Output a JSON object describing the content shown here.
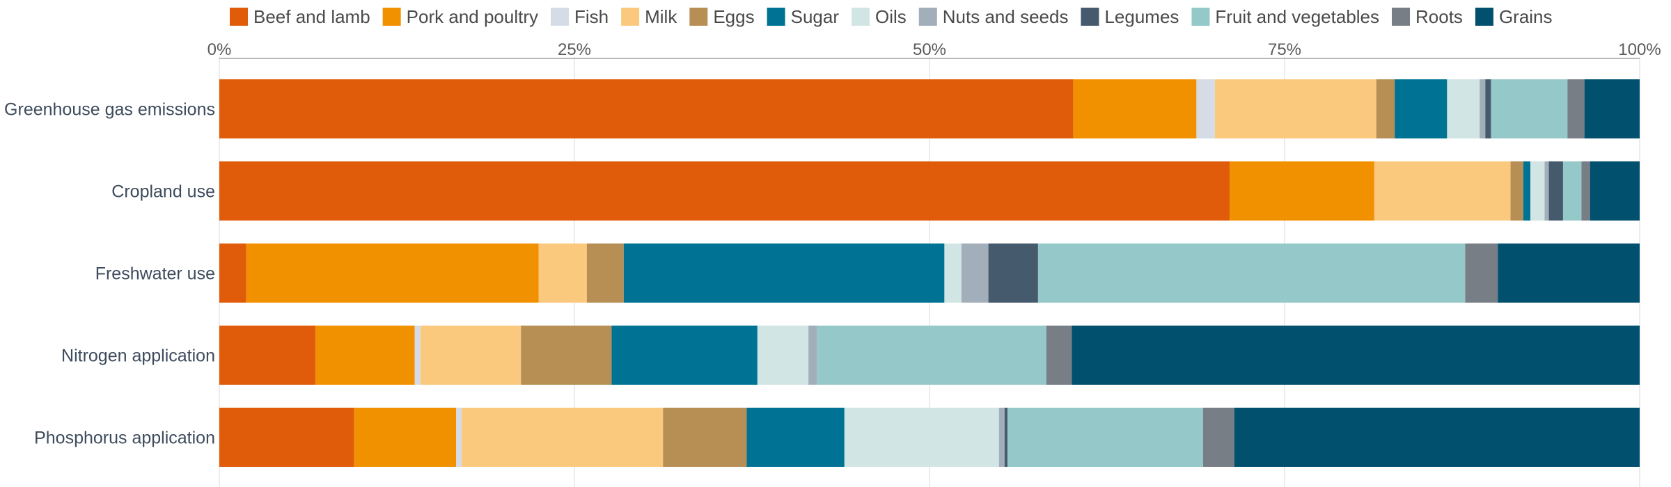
{
  "chart_data": {
    "type": "bar",
    "orientation": "horizontal",
    "stacked": true,
    "legend_position": "top",
    "grid": true,
    "xlim": [
      0,
      100
    ],
    "x_ticks": [
      "0%",
      "25%",
      "50%",
      "75%",
      "100%"
    ],
    "categories": [
      "Greenhouse gas emissions",
      "Cropland use",
      "Freshwater use",
      "Nitrogen application",
      "Phosphorus application"
    ],
    "series": [
      {
        "name": "Beef and lamb",
        "color": "#e05c0a",
        "values": [
          60.3,
          71.2,
          1.9,
          6.8,
          9.5
        ]
      },
      {
        "name": "Pork and poultry",
        "color": "#f29100",
        "values": [
          8.7,
          10.2,
          20.6,
          7.0,
          7.2
        ]
      },
      {
        "name": "Fish",
        "color": "#d5dce6",
        "values": [
          1.3,
          0.0,
          0.0,
          0.4,
          0.4
        ]
      },
      {
        "name": "Milk",
        "color": "#fbc97e",
        "values": [
          11.4,
          9.6,
          3.4,
          7.1,
          14.2
        ]
      },
      {
        "name": "Eggs",
        "color": "#b78f55",
        "values": [
          1.3,
          0.9,
          2.6,
          6.4,
          5.9
        ]
      },
      {
        "name": "Sugar",
        "color": "#007395",
        "values": [
          3.7,
          0.5,
          22.6,
          10.3,
          6.9
        ]
      },
      {
        "name": "Oils",
        "color": "#d1e6e4",
        "values": [
          2.3,
          1.0,
          1.2,
          3.6,
          10.9
        ]
      },
      {
        "name": "Nuts and seeds",
        "color": "#a3aebb",
        "values": [
          0.4,
          0.3,
          1.9,
          0.6,
          0.4
        ]
      },
      {
        "name": "Legumes",
        "color": "#465a6e",
        "values": [
          0.4,
          1.0,
          3.5,
          0.0,
          0.2
        ]
      },
      {
        "name": "Fruit and vegetables",
        "color": "#95c8c9",
        "values": [
          5.4,
          1.3,
          30.1,
          16.2,
          13.8
        ]
      },
      {
        "name": "Roots",
        "color": "#787e86",
        "values": [
          1.2,
          0.6,
          2.3,
          1.8,
          2.2
        ]
      },
      {
        "name": "Grains",
        "color": "#00506e",
        "values": [
          3.9,
          3.5,
          10.0,
          40.1,
          28.6
        ]
      }
    ]
  }
}
